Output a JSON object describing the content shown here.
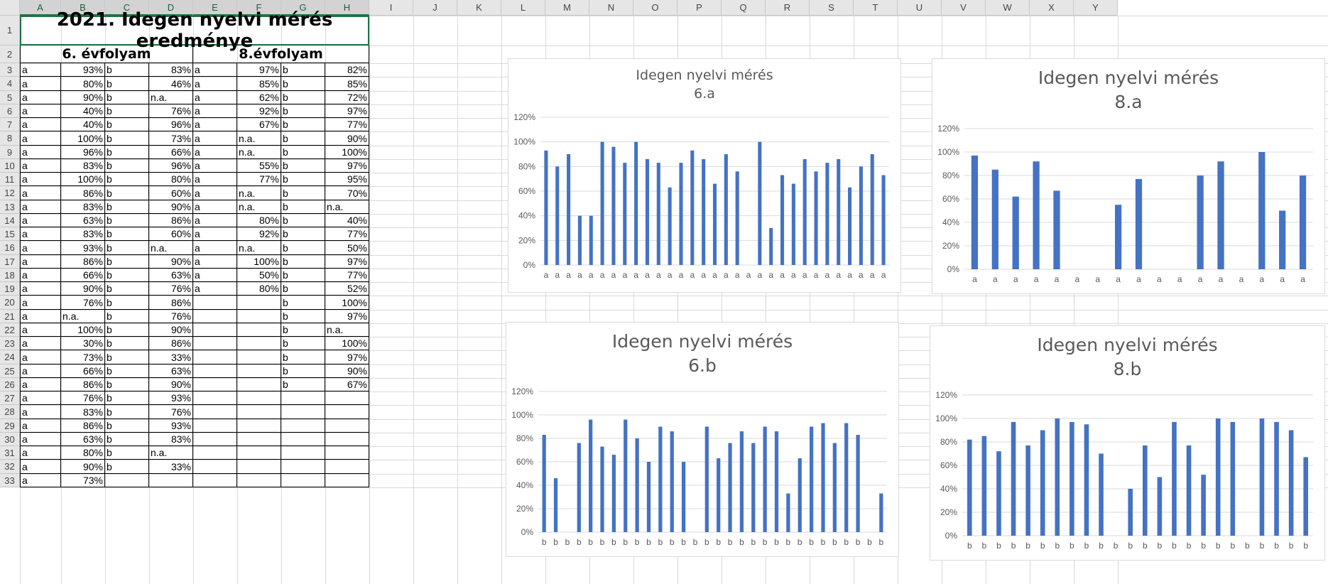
{
  "columns": [
    "A",
    "B",
    "C",
    "D",
    "E",
    "F",
    "G",
    "H",
    "I",
    "J",
    "K",
    "L",
    "M",
    "N",
    "O",
    "P",
    "Q",
    "R",
    "S",
    "T",
    "U",
    "V",
    "W",
    "X",
    "Y"
  ],
  "rows": [
    "1",
    "2",
    "3",
    "4",
    "5",
    "6",
    "7",
    "8",
    "9",
    "10",
    "11",
    "12",
    "13",
    "14",
    "15",
    "16",
    "17",
    "18",
    "19",
    "20",
    "21",
    "22",
    "23",
    "24",
    "25",
    "26",
    "27",
    "28",
    "29",
    "30",
    "31",
    "32",
    "33"
  ],
  "title": "2021. Idegen nyelvi mérés eredménye",
  "grade6_header": "6. évfolyam",
  "grade8_header": "8.évfolyam",
  "table": [
    [
      "a",
      "93%",
      "b",
      "83%",
      "a",
      "97%",
      "b",
      "82%"
    ],
    [
      "a",
      "80%",
      "b",
      "46%",
      "a",
      "85%",
      "b",
      "85%"
    ],
    [
      "a",
      "90%",
      "b",
      "n.a.",
      "a",
      "62%",
      "b",
      "72%"
    ],
    [
      "a",
      "40%",
      "b",
      "76%",
      "a",
      "92%",
      "b",
      "97%"
    ],
    [
      "a",
      "40%",
      "b",
      "96%",
      "a",
      "67%",
      "b",
      "77%"
    ],
    [
      "a",
      "100%",
      "b",
      "73%",
      "a",
      "n.a.",
      "b",
      "90%"
    ],
    [
      "a",
      "96%",
      "b",
      "66%",
      "a",
      "n.a.",
      "b",
      "100%"
    ],
    [
      "a",
      "83%",
      "b",
      "96%",
      "a",
      "55%",
      "b",
      "97%"
    ],
    [
      "a",
      "100%",
      "b",
      "80%",
      "a",
      "77%",
      "b",
      "95%"
    ],
    [
      "a",
      "86%",
      "b",
      "60%",
      "a",
      "n.a.",
      "b",
      "70%"
    ],
    [
      "a",
      "83%",
      "b",
      "90%",
      "a",
      "n.a.",
      "b",
      "n.a."
    ],
    [
      "a",
      "63%",
      "b",
      "86%",
      "a",
      "80%",
      "b",
      "40%"
    ],
    [
      "a",
      "83%",
      "b",
      "60%",
      "a",
      "92%",
      "b",
      "77%"
    ],
    [
      "a",
      "93%",
      "b",
      "n.a.",
      "a",
      "n.a.",
      "b",
      "50%"
    ],
    [
      "a",
      "86%",
      "b",
      "90%",
      "a",
      "100%",
      "b",
      "97%"
    ],
    [
      "a",
      "66%",
      "b",
      "63%",
      "a",
      "50%",
      "b",
      "77%"
    ],
    [
      "a",
      "90%",
      "b",
      "76%",
      "a",
      "80%",
      "b",
      "52%"
    ],
    [
      "a",
      "76%",
      "b",
      "86%",
      "",
      "",
      "b",
      "100%"
    ],
    [
      "a",
      "n.a.",
      "b",
      "76%",
      "",
      "",
      "b",
      "97%"
    ],
    [
      "a",
      "100%",
      "b",
      "90%",
      "",
      "",
      "b",
      "n.a."
    ],
    [
      "a",
      "30%",
      "b",
      "86%",
      "",
      "",
      "b",
      "100%"
    ],
    [
      "a",
      "73%",
      "b",
      "33%",
      "",
      "",
      "b",
      "97%"
    ],
    [
      "a",
      "66%",
      "b",
      "63%",
      "",
      "",
      "b",
      "90%"
    ],
    [
      "a",
      "86%",
      "b",
      "90%",
      "",
      "",
      "b",
      "67%"
    ],
    [
      "a",
      "76%",
      "b",
      "93%",
      "",
      "",
      "",
      ""
    ],
    [
      "a",
      "83%",
      "b",
      "76%",
      "",
      "",
      "",
      ""
    ],
    [
      "a",
      "86%",
      "b",
      "93%",
      "",
      "",
      "",
      ""
    ],
    [
      "a",
      "63%",
      "b",
      "83%",
      "",
      "",
      "",
      ""
    ],
    [
      "a",
      "80%",
      "b",
      "n.a.",
      "",
      "",
      "",
      ""
    ],
    [
      "a",
      "90%",
      "b",
      "33%",
      "",
      "",
      "",
      ""
    ],
    [
      "a",
      "73%",
      "",
      "",
      "",
      "",
      "",
      ""
    ]
  ],
  "chart_data": [
    {
      "type": "bar",
      "title": "Idegen nyelvi mérés",
      "subtitle": "6.a",
      "series": [
        {
          "values": [
            93,
            80,
            90,
            40,
            40,
            100,
            96,
            83,
            100,
            86,
            83,
            63,
            83,
            93,
            86,
            66,
            90,
            76,
            null,
            100,
            30,
            73,
            66,
            86,
            76,
            83,
            86,
            63,
            80,
            90,
            73
          ]
        }
      ],
      "categories": [
        "a",
        "a",
        "a",
        "a",
        "a",
        "a",
        "a",
        "a",
        "a",
        "a",
        "a",
        "a",
        "a",
        "a",
        "a",
        "a",
        "a",
        "a",
        "a",
        "a",
        "a",
        "a",
        "a",
        "a",
        "a",
        "a",
        "a",
        "a",
        "a",
        "a",
        "a"
      ],
      "yticks": [
        "0%",
        "20%",
        "40%",
        "60%",
        "80%",
        "100%",
        "120%"
      ],
      "ylim": [
        0,
        120
      ],
      "color": "#4472c4"
    },
    {
      "type": "bar",
      "title": "Idegen nyelvi mérés",
      "subtitle": "8.a",
      "series": [
        {
          "values": [
            97,
            85,
            62,
            92,
            67,
            null,
            null,
            55,
            77,
            null,
            null,
            80,
            92,
            null,
            100,
            50,
            80
          ]
        }
      ],
      "categories": [
        "a",
        "a",
        "a",
        "a",
        "a",
        "a",
        "a",
        "a",
        "a",
        "a",
        "a",
        "a",
        "a",
        "a",
        "a",
        "a",
        "a"
      ],
      "yticks": [
        "0%",
        "20%",
        "40%",
        "60%",
        "80%",
        "100%",
        "120%"
      ],
      "ylim": [
        0,
        120
      ],
      "color": "#4472c4"
    },
    {
      "type": "bar",
      "title": "Idegen nyelvi mérés",
      "subtitle": "6.b",
      "series": [
        {
          "values": [
            83,
            46,
            null,
            76,
            96,
            73,
            66,
            96,
            80,
            60,
            90,
            86,
            60,
            null,
            90,
            63,
            76,
            86,
            76,
            90,
            86,
            33,
            63,
            90,
            93,
            76,
            93,
            83,
            null,
            33
          ]
        }
      ],
      "categories": [
        "b",
        "b",
        "b",
        "b",
        "b",
        "b",
        "b",
        "b",
        "b",
        "b",
        "b",
        "b",
        "b",
        "b",
        "b",
        "b",
        "b",
        "b",
        "b",
        "b",
        "b",
        "b",
        "b",
        "b",
        "b",
        "b",
        "b",
        "b",
        "b",
        "b"
      ],
      "yticks": [
        "0%",
        "20%",
        "40%",
        "60%",
        "80%",
        "100%",
        "120%"
      ],
      "ylim": [
        0,
        120
      ],
      "color": "#4472c4"
    },
    {
      "type": "bar",
      "title": "Idegen nyelvi mérés",
      "subtitle": "8.b",
      "series": [
        {
          "values": [
            82,
            85,
            72,
            97,
            77,
            90,
            100,
            97,
            95,
            70,
            null,
            40,
            77,
            50,
            97,
            77,
            52,
            100,
            97,
            null,
            100,
            97,
            90,
            67
          ]
        }
      ],
      "categories": [
        "b",
        "b",
        "b",
        "b",
        "b",
        "b",
        "b",
        "b",
        "b",
        "b",
        "b",
        "b",
        "b",
        "b",
        "b",
        "b",
        "b",
        "b",
        "b",
        "b",
        "b",
        "b",
        "b",
        "b"
      ],
      "yticks": [
        "0%",
        "20%",
        "40%",
        "60%",
        "80%",
        "100%",
        "120%"
      ],
      "ylim": [
        0,
        120
      ],
      "color": "#4472c4"
    }
  ]
}
